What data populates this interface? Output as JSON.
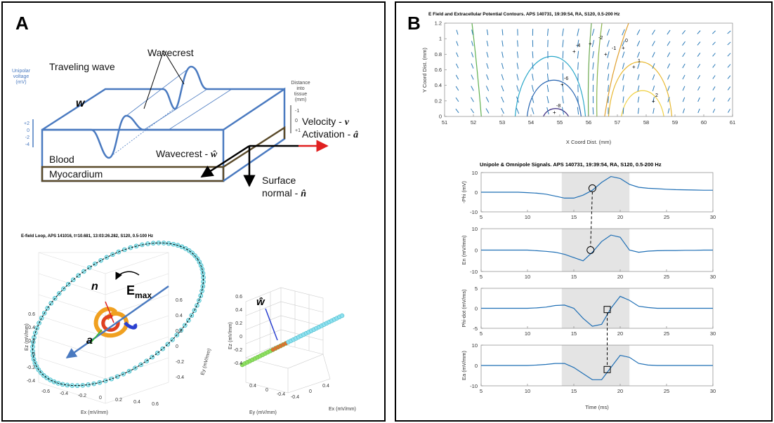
{
  "panel_a": {
    "label": "A",
    "diagram": {
      "wavecrest": "Wavecrest",
      "traveling_wave": "Traveling wave",
      "w": "w",
      "voltage_axis_label": [
        "Unipolar",
        "voltage",
        "(mV)"
      ],
      "voltage_ticks": [
        "+2",
        "0",
        "-2",
        "-4"
      ],
      "depth_axis_label": [
        "Distance",
        "into",
        "tissue",
        "(mm)"
      ],
      "depth_ticks": [
        "-1",
        "0",
        "+1"
      ],
      "velocity": {
        "text": "Velocity - ",
        "symbol": "v"
      },
      "activation": {
        "text": "Activation - ",
        "symbol": "â"
      },
      "wavecrest_vector": {
        "text": "Wavecrest - ",
        "symbol": "ŵ"
      },
      "surface_normal": {
        "text": "Surface",
        "text2": "normal - ",
        "symbol": "n̂"
      },
      "blood": "Blood",
      "myocardium": "Myocardium"
    },
    "loop_plot": {
      "title": "E-field Loop, APS 141016, t=10.681, 13:03:26.282, S120, 0.5-100 Hz",
      "n": "n",
      "emax": {
        "text": "E",
        "sub": "max"
      },
      "a": "a",
      "xlabel": "Ex (mV/mm)",
      "ylabel": "Ey (mV/mm)",
      "zlabel": "Ez (mV/mm)",
      "xticks": [
        "-0.6",
        "-0.4",
        "-0.2",
        "0",
        "0.2",
        "0.4",
        "0.6"
      ],
      "yticks": [
        "0.6",
        "0.4",
        "0.2",
        "0",
        "-0.2",
        "-0.4"
      ],
      "zticks": [
        "0.6",
        "0.4",
        "0.2",
        "0",
        "-0.2",
        "-0.4"
      ]
    },
    "projection_plot": {
      "w_hat": "ŵ",
      "xlabel": "Ex (mV/mm)",
      "ylabel": "Ey (mV/mm)",
      "zlabel": "Ez (mV/mm)",
      "zticks": [
        "0.6",
        "0.4",
        "0.2",
        "0",
        "-0.2",
        "-0.4"
      ],
      "yticks": [
        "0.4",
        "0",
        "-0.4"
      ],
      "xticks": [
        "-0.4",
        "0",
        "0.4"
      ]
    }
  },
  "panel_b": {
    "label": "B",
    "contour_plot": {
      "title": "E Field and Extracellular Potential Contours. APS 140731, 19:39:54, RA, S120, 0.5-200 Hz",
      "xlabel": "X Coord Dist. (mm)",
      "ylabel": "Y Coord Dist. (mm)",
      "xlim": [
        51,
        61
      ],
      "xticks": [
        51,
        52,
        53,
        54,
        55,
        56,
        57,
        58,
        59,
        60,
        61
      ],
      "ylim": [
        0,
        1.2
      ],
      "yticks": [
        0,
        0.2,
        0.4,
        0.6,
        0.8,
        1,
        1.2
      ],
      "contour_labels": [
        -8,
        -6,
        -4,
        -2,
        -1,
        0,
        1,
        2
      ]
    },
    "signals": {
      "title": "Unipole & Omnipole Signals. APS 140731, 19:39:54, RA, S120, 0.5-200 Hz",
      "xlabel": "Time (ms)",
      "color": "#1f6fb5",
      "xlim": [
        5,
        30
      ],
      "xticks": [
        5,
        10,
        15,
        20,
        25,
        30
      ],
      "shade": [
        13.7,
        21
      ],
      "x": [
        5,
        6,
        7,
        8,
        9,
        10,
        11,
        12,
        13,
        14,
        15,
        16,
        17,
        18,
        19,
        20,
        21,
        22,
        23,
        24,
        25,
        26,
        27,
        28,
        29,
        30
      ],
      "plots": [
        {
          "ylabel": "-Phi (mV)",
          "ylim": [
            -10,
            10
          ],
          "yticks": [
            -10,
            0,
            10
          ],
          "values": [
            0,
            0,
            0,
            0,
            0,
            -0.2,
            -0.5,
            -1,
            -2,
            -3,
            -3,
            -1.5,
            1,
            5,
            8,
            7,
            4,
            2.5,
            2,
            1.8,
            1.5,
            1.3,
            1.2,
            1.1,
            1,
            1
          ],
          "marker": {
            "shape": "circle",
            "x": 17,
            "y": 2
          }
        },
        {
          "ylabel": "En (mV/mm)",
          "ylim": [
            -10,
            10
          ],
          "yticks": [
            -10,
            0,
            10
          ],
          "values": [
            0,
            0,
            0,
            0,
            0,
            0,
            -0.3,
            -0.6,
            -1,
            -2,
            -3.5,
            -5,
            -1,
            4,
            7,
            6,
            0,
            -1,
            -0.5,
            -0.3,
            -0.2,
            -0.2,
            -0.1,
            -0.1,
            0,
            0
          ],
          "marker": {
            "shape": "circle",
            "x": 16.8,
            "y": 0
          }
        },
        {
          "ylabel": "Phi-dot (mV/ms)",
          "ylim": [
            -5,
            5
          ],
          "yticks": [
            -5,
            0,
            5
          ],
          "values": [
            0,
            0,
            0,
            0,
            0,
            0,
            0.1,
            0.3,
            0.7,
            0.8,
            0,
            -2.5,
            -4.5,
            -4,
            0,
            3,
            2,
            0.5,
            0.2,
            0,
            0,
            0,
            0,
            0,
            0,
            0
          ],
          "marker": {
            "shape": "square",
            "x": 18.6,
            "y": -0.3
          }
        },
        {
          "ylabel": "Ea (mV/mm)",
          "ylim": [
            -10,
            10
          ],
          "yticks": [
            -10,
            0,
            10
          ],
          "values": [
            0,
            0,
            0,
            0,
            0,
            0,
            0.2,
            0.5,
            1,
            1,
            -1,
            -4,
            -7,
            -7,
            -1,
            5,
            4,
            1,
            0.2,
            0,
            0,
            0,
            0,
            0,
            0,
            0
          ],
          "marker": {
            "shape": "square",
            "x": 18.6,
            "y": -2
          }
        }
      ]
    }
  }
}
